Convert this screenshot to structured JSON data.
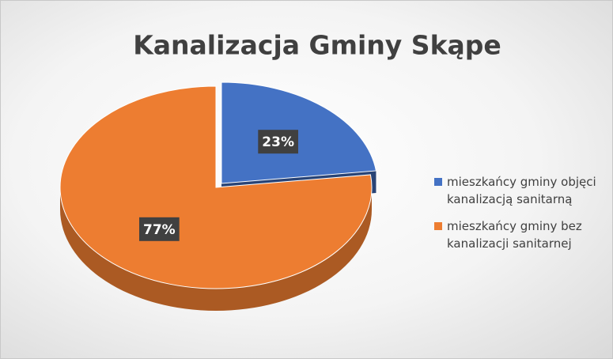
{
  "chart_data": {
    "type": "pie",
    "title": "Kanalizacja Gminy Skąpe",
    "categories": [
      "mieszkańcy gminy objęci kanalizacją sanitarną",
      "mieszkańcy gminy bez kanalizacji sanitarnej"
    ],
    "values": [
      23,
      77
    ],
    "value_labels": [
      "23%",
      "77%"
    ],
    "colors": [
      "#4472c4",
      "#ed7d31"
    ],
    "explode": [
      true,
      false
    ],
    "legend": "right"
  }
}
